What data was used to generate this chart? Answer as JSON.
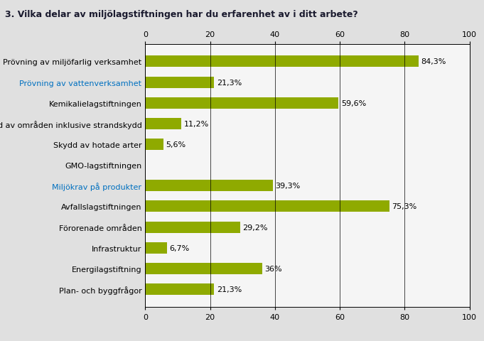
{
  "title": "3. Vilka delar av miljölagstiftningen har du erfarenhet av i ditt arbete?",
  "categories": [
    "Prövning av miljöfarlig verksamhet",
    "Prövning av vattenverksamhet",
    "Kemikalielagstiftningen",
    "Skydd av områden inklusive strandskydd",
    "Skydd av hotade arter",
    "GMO-lagstiftningen",
    "Miljökrav på produkter",
    "Avfallslagstiftningen",
    "Förorenade områden",
    "Infrastruktur",
    "Energilagstiftning",
    "Plan- och byggfrågor"
  ],
  "values": [
    84.3,
    21.3,
    59.6,
    11.2,
    5.6,
    0.0,
    39.3,
    75.3,
    29.2,
    6.7,
    36.0,
    21.3
  ],
  "labels": [
    "84,3%",
    "21,3%",
    "59,6%",
    "11,2%",
    "5,6%",
    "",
    "39,3%",
    "75,3%",
    "29,2%",
    "6,7%",
    "36%",
    "21,3%"
  ],
  "bar_color": "#8faa00",
  "label_color_map": {
    "Miljökrav på produkter": "#0070c0",
    "Prövning av vattenverksamhet": "#0070c0"
  },
  "title_fontsize": 9,
  "tick_fontsize": 8,
  "bar_label_fontsize": 8,
  "xlim": [
    0,
    100
  ],
  "xticks": [
    0,
    20,
    40,
    60,
    80,
    100
  ],
  "figure_bg_color": "#e0e0e0",
  "plot_bg_color": "#f5f5f5",
  "grid_color": "#000000"
}
